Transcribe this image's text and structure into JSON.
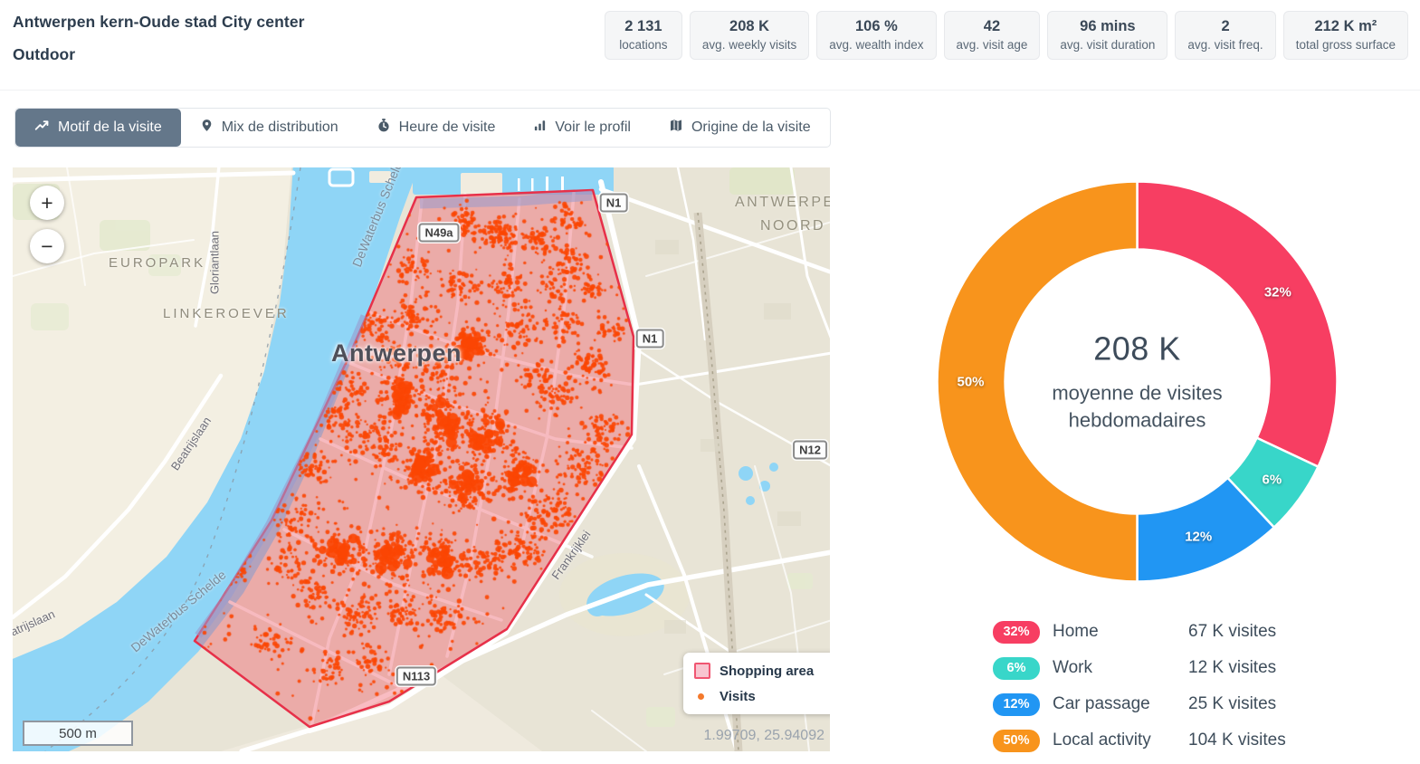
{
  "header": {
    "title_line1": "Antwerpen kern-Oude stad City center",
    "title_line2": "Outdoor",
    "stats": [
      {
        "value": "2 131",
        "label": "locations"
      },
      {
        "value": "208 K",
        "label": "avg. weekly visits"
      },
      {
        "value": "106 %",
        "label": "avg. wealth index"
      },
      {
        "value": "42",
        "label": "avg. visit age"
      },
      {
        "value": "96 mins",
        "label": "avg. visit duration"
      },
      {
        "value": "2",
        "label": "avg. visit freq."
      },
      {
        "value": "212 K m²",
        "label": "total gross surface"
      }
    ]
  },
  "tabs": {
    "items": [
      {
        "label": "Motif de la visite",
        "icon": "trend-icon",
        "active": true
      },
      {
        "label": "Mix de distribution",
        "icon": "pin-icon",
        "active": false
      },
      {
        "label": "Heure de visite",
        "icon": "stopwatch-icon",
        "active": false
      },
      {
        "label": "Voir le profil",
        "icon": "bar-chart-icon",
        "active": false
      },
      {
        "label": "Origine de la visite",
        "icon": "map-icon",
        "active": false
      }
    ]
  },
  "map": {
    "labels": {
      "city": "Antwerpen",
      "europark": "EUROPARK",
      "linkeroever": "LINKEROEVER",
      "noord_line1": "ANTWERPEN",
      "noord_line2": "NOORD",
      "gloriantlaan": "Gloriantlaan",
      "beatrijslaan": "Beatrijslaan",
      "atrijslaan": "atrijslaan",
      "river_top": "DeWaterbus Schelde",
      "river_bottom": "DeWaterbus Schelde",
      "frankrijklei": "Frankrijklei"
    },
    "shields": [
      "N1",
      "N49a",
      "N1",
      "N12",
      "N113"
    ],
    "controls": {
      "zoom_in": "+",
      "zoom_out": "−"
    },
    "scale": "500 m",
    "coordinates": "1.99709, 25.94092",
    "legend": {
      "area_label": "Shopping area",
      "visits_label": "Visits"
    },
    "colors": {
      "area_fill": "rgba(240,80,95,0.38)",
      "area_stroke": "#E73049",
      "visit_dots": "#FB4503",
      "water": "#8FD5F6"
    }
  },
  "chart_data": {
    "type": "pie",
    "subtype": "donut",
    "center_value": "208 K",
    "center_label": "moyenne de visites hebdomadaires",
    "legend_position": "bottom",
    "segments": [
      {
        "label": "Home",
        "percent": 32,
        "pct": "32%",
        "visits": "67 K visites",
        "color": "#F73E62"
      },
      {
        "label": "Work",
        "percent": 6,
        "pct": "6%",
        "visits": "12 K visites",
        "color": "#38D6C9"
      },
      {
        "label": "Car passage",
        "percent": 12,
        "pct": "12%",
        "visits": "25 K visites",
        "color": "#2196F3"
      },
      {
        "label": "Local activity",
        "percent": 50,
        "pct": "50%",
        "visits": "104 K visites",
        "color": "#F8941C"
      }
    ]
  }
}
